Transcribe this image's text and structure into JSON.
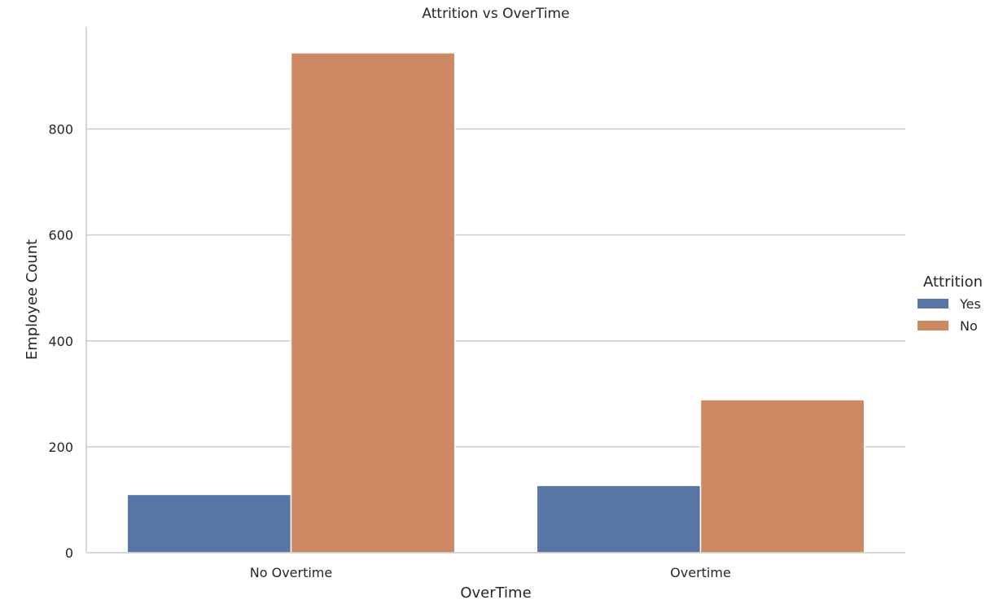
{
  "chart_data": {
    "type": "bar",
    "title": "Attrition vs OverTime",
    "xlabel": "OverTime",
    "ylabel": "Employee Count",
    "categories": [
      "No Overtime",
      "Overtime"
    ],
    "series": [
      {
        "name": "Yes",
        "color": "#5975a4",
        "values": [
          110,
          127
        ]
      },
      {
        "name": "No",
        "color": "#cc8963",
        "values": [
          944,
          289
        ]
      }
    ],
    "ylim": [
      0,
      993
    ],
    "yticks": [
      0,
      200,
      400,
      600,
      800
    ],
    "grid": "horizontal",
    "legend": {
      "title": "Attrition",
      "placement": "right"
    }
  }
}
